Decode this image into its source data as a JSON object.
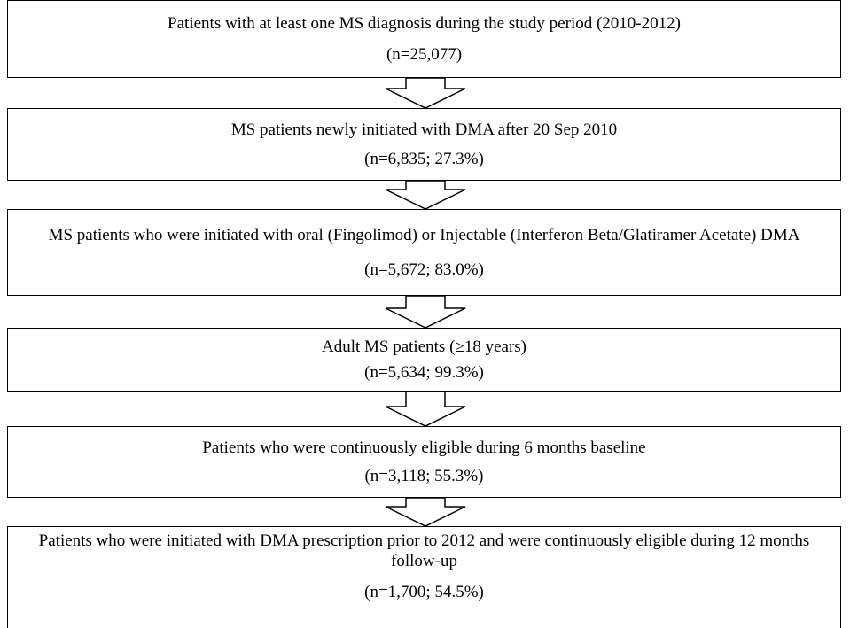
{
  "nodes": [
    {
      "label": "Patients with at least one MS diagnosis during the study period  (2010-2012)",
      "count": "(n=25,077)"
    },
    {
      "label": "MS patients newly initiated with DMA after 20 Sep 2010",
      "count": "(n=6,835;  27.3%)"
    },
    {
      "label": "MS patients who were initiated with oral (Fingolimod) or Injectable (Interferon Beta/Glatiramer Acetate) DMA",
      "count": "(n=5,672;  83.0%)"
    },
    {
      "label": "Adult MS patients (≥18 years)",
      "count": "(n=5,634; 99.3%)"
    },
    {
      "label": "Patients who were continuously eligible during 6 months baseline",
      "count": "(n=3,118;  55.3%)"
    },
    {
      "label": "Patients who were initiated with DMA prescription prior to 2012 and were continuously eligible during 12 months follow-up",
      "count": "(n=1,700;  54.5%)"
    }
  ]
}
